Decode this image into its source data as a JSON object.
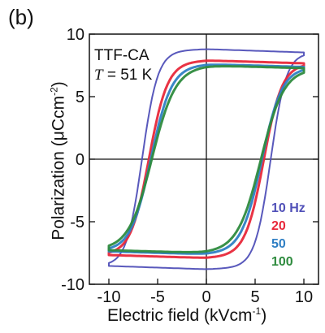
{
  "panel_label": "(b)",
  "annotation": {
    "sample": "TTF-CA",
    "temp_symbol": "T",
    "temp_value": " = 51 K"
  },
  "chart_data": {
    "type": "line",
    "panel_label": "(b)",
    "xlabel_text": "Electric field  (kVcm",
    "xlabel_exp": "-1",
    "xlabel_close": ")",
    "ylabel_text": "Polarization  (μCcm",
    "ylabel_exp": "-2",
    "ylabel_close": ")",
    "xlim": [
      -12,
      11.5
    ],
    "ylim": [
      -10,
      10
    ],
    "xticks": [
      -10,
      -5,
      0,
      5,
      10
    ],
    "xtick_labels": [
      "-10",
      "-5",
      "0",
      "5",
      "10"
    ],
    "yticks": [
      -10,
      -5,
      0,
      5,
      10
    ],
    "ytick_labels": [
      "-10",
      "-5",
      "0",
      "5",
      "10"
    ],
    "zero_lines": true,
    "grid": false,
    "legend_position": "right",
    "series": [
      {
        "name": "10 Hz",
        "color": "#5050b8",
        "ps": 8.8,
        "ec": 6.6,
        "w": 1.6,
        "sat": 7.6
      },
      {
        "name": "20",
        "color": "#e8283a",
        "ps": 7.9,
        "ec": 5.9,
        "w": 1.9,
        "sat": 7.6
      },
      {
        "name": "50",
        "color": "#2f7fc4",
        "ps": 7.6,
        "ec": 5.7,
        "w": 2.1,
        "sat": 7.4
      },
      {
        "name": "100",
        "color": "#2e8b3e",
        "ps": 7.5,
        "ec": 5.6,
        "w": 2.4,
        "sat": 7.0
      }
    ],
    "x_range": [
      -10,
      10
    ]
  }
}
